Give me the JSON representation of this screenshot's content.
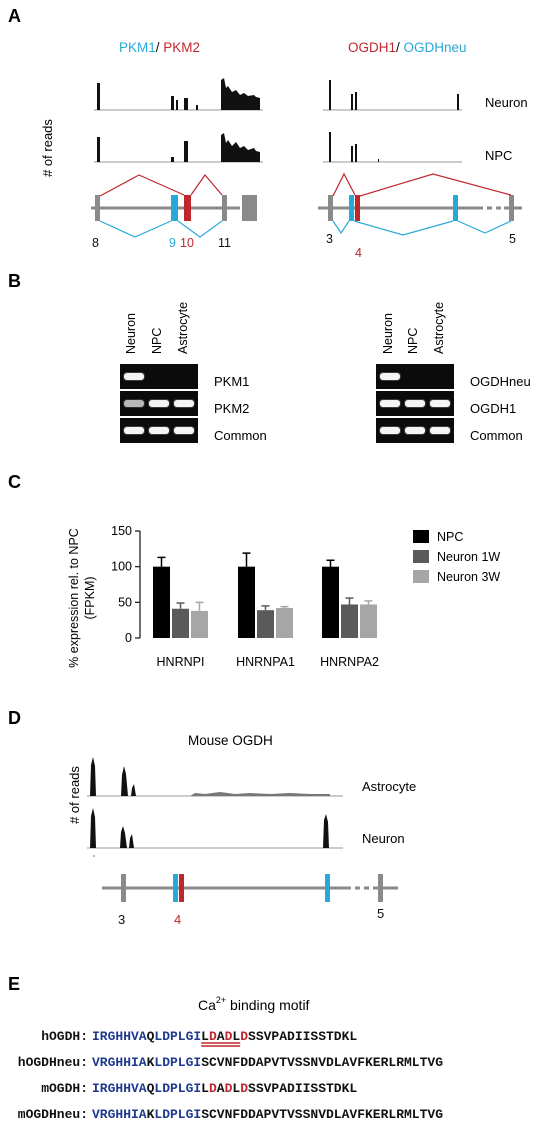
{
  "panelA": {
    "letter": "A",
    "title_left_a": "PKM1",
    "title_left_sep": "/ ",
    "title_left_b": "PKM2",
    "title_right_a": "OGDH1",
    "title_right_sep": "/ ",
    "title_right_b": "OGDHneu",
    "ylabel": "# of reads",
    "row_neuron": "Neuron",
    "row_npc": "NPC",
    "exons_left": [
      "8",
      "9",
      "10",
      "11"
    ],
    "exons_right": [
      "3",
      "4",
      "5"
    ]
  },
  "panelB": {
    "letter": "B",
    "lanes": [
      "Neuron",
      "NPC",
      "Astrocyte"
    ],
    "left_rows": [
      "PKM1",
      "PKM2",
      "Common"
    ],
    "right_rows": [
      "OGDHneu",
      "OGDH1",
      "Common"
    ]
  },
  "panelC": {
    "letter": "C",
    "ylabel_line1": "% expression rel. to NPC",
    "ylabel_line2": "(FPKM)",
    "legend": [
      "NPC",
      "Neuron 1W",
      "Neuron 3W"
    ]
  },
  "chart_data": {
    "type": "bar",
    "categories": [
      "HNRNPI",
      "HNRNPA1",
      "HNRNPA2"
    ],
    "series": [
      {
        "name": "NPC",
        "values": [
          100,
          100,
          100
        ],
        "errors": [
          13,
          19,
          9
        ],
        "color": "#000000"
      },
      {
        "name": "Neuron 1W",
        "values": [
          41,
          39,
          47
        ],
        "errors": [
          8,
          6,
          9
        ],
        "color": "#5a5a5a"
      },
      {
        "name": "Neuron 3W",
        "values": [
          38,
          42,
          47
        ],
        "errors": [
          12,
          2,
          5
        ],
        "color": "#a6a6a6"
      }
    ],
    "yticks": [
      0,
      50,
      100,
      150
    ],
    "ylim": [
      0,
      150
    ],
    "ylabel": "% expression rel. to NPC (FPKM)"
  },
  "panelD": {
    "letter": "D",
    "title": "Mouse OGDH",
    "ylabel": "# of reads",
    "row_astrocyte": "Astrocyte",
    "row_neuron": "Neuron",
    "exons": [
      "3",
      "4",
      "5"
    ]
  },
  "panelE": {
    "letter": "E",
    "motif_prefix": "Ca",
    "motif_sup": "2+",
    "motif_suffix": " binding motif",
    "rows": [
      {
        "name": "hOGDH:",
        "segments": [
          {
            "t": "IRGHHVA",
            "c": "#1f3a8f"
          },
          {
            "t": "Q",
            "c": "#111111"
          },
          {
            "t": "LDPLGI",
            "c": "#1f3a8f"
          },
          {
            "t": "L",
            "c": "#111111"
          },
          {
            "t": "D",
            "c": "#c0272d"
          },
          {
            "t": "A",
            "c": "#111111"
          },
          {
            "t": "D",
            "c": "#c0272d"
          },
          {
            "t": "L",
            "c": "#111111"
          },
          {
            "t": "D",
            "c": "#c0272d"
          },
          {
            "t": "SSVPADIISSTDKL",
            "c": "#111111"
          }
        ]
      },
      {
        "name": "hOGDHneu:",
        "segments": [
          {
            "t": "VRGHHIA",
            "c": "#1f3a8f"
          },
          {
            "t": "K",
            "c": "#111111"
          },
          {
            "t": "LDPLGI",
            "c": "#1f3a8f"
          },
          {
            "t": "SCVNFDDAPVTVSSNVDLAVFKERLRMLTVG",
            "c": "#111111"
          }
        ]
      },
      {
        "name": "mOGDH:",
        "segments": [
          {
            "t": "IRGHHVA",
            "c": "#1f3a8f"
          },
          {
            "t": "Q",
            "c": "#111111"
          },
          {
            "t": "LDPLGI",
            "c": "#1f3a8f"
          },
          {
            "t": "L",
            "c": "#111111"
          },
          {
            "t": "D",
            "c": "#c0272d"
          },
          {
            "t": "A",
            "c": "#111111"
          },
          {
            "t": "D",
            "c": "#c0272d"
          },
          {
            "t": "L",
            "c": "#111111"
          },
          {
            "t": "D",
            "c": "#c0272d"
          },
          {
            "t": "SSVPADIISSTDKL",
            "c": "#111111"
          }
        ]
      },
      {
        "name": "mOGDHneu:",
        "segments": [
          {
            "t": "VRGHHIA",
            "c": "#1f3a8f"
          },
          {
            "t": "K",
            "c": "#111111"
          },
          {
            "t": "LDPLGI",
            "c": "#1f3a8f"
          },
          {
            "t": "SCVNFDDAPVTVSSNVDLAVFKERLRMLTVG",
            "c": "#111111"
          }
        ]
      }
    ]
  },
  "colors": {
    "cyan": "#29a9d8",
    "red": "#c0272d",
    "grey": "#8a8a8a",
    "navy": "#1f3a8f"
  }
}
